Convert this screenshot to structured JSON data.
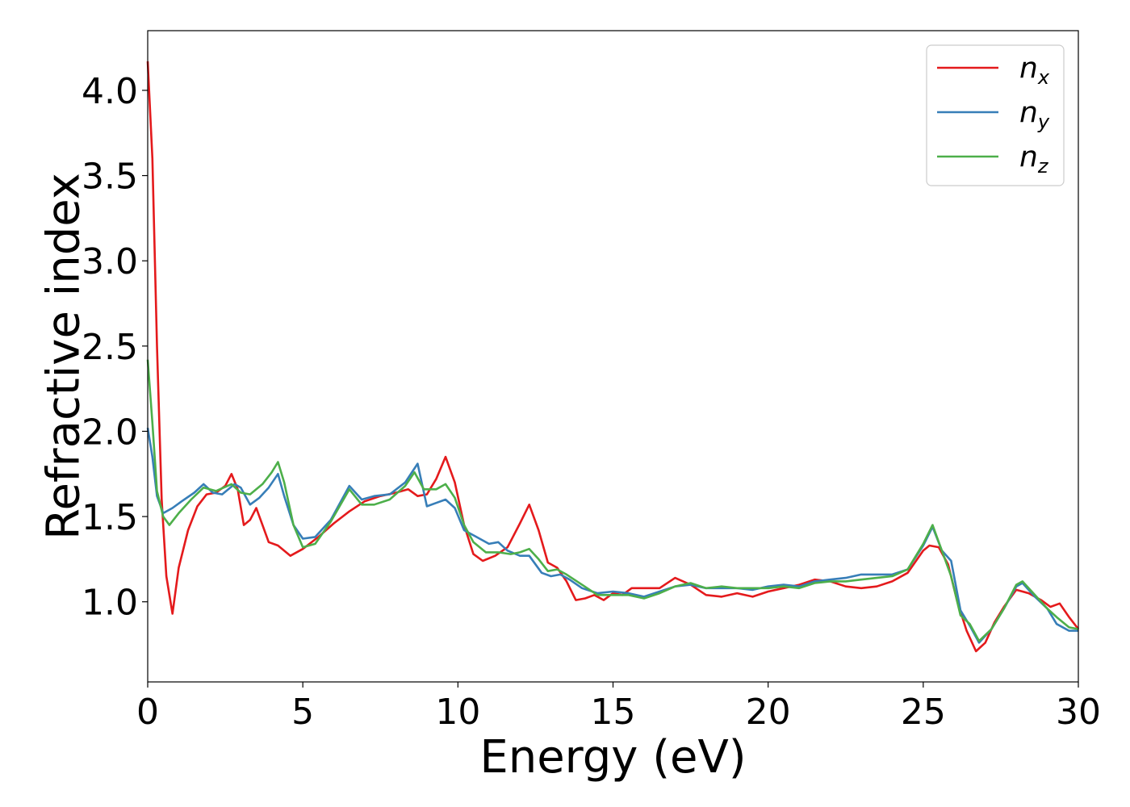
{
  "chart_data": {
    "type": "line",
    "xlabel": "Energy (eV)",
    "ylabel": "Refractive index",
    "xlim": [
      0,
      30
    ],
    "ylim": [
      0.53,
      4.35
    ],
    "xticks": [
      0,
      5,
      10,
      15,
      20,
      25,
      30
    ],
    "yticks": [
      1.0,
      1.5,
      2.0,
      2.5,
      3.0,
      3.5,
      4.0
    ],
    "ytick_labels": [
      "1.0",
      "1.5",
      "2.0",
      "2.5",
      "3.0",
      "3.5",
      "4.0"
    ],
    "grid": false,
    "legend_position": "top-right",
    "series": [
      {
        "name": "n",
        "subscript": "x",
        "color": "#e41a1c",
        "points": [
          [
            0,
            4.17
          ],
          [
            0.15,
            3.6
          ],
          [
            0.3,
            2.5
          ],
          [
            0.45,
            1.6
          ],
          [
            0.6,
            1.15
          ],
          [
            0.8,
            0.93
          ],
          [
            1.0,
            1.2
          ],
          [
            1.3,
            1.42
          ],
          [
            1.6,
            1.56
          ],
          [
            1.9,
            1.63
          ],
          [
            2.2,
            1.64
          ],
          [
            2.5,
            1.68
          ],
          [
            2.7,
            1.75
          ],
          [
            2.9,
            1.66
          ],
          [
            3.1,
            1.45
          ],
          [
            3.3,
            1.48
          ],
          [
            3.5,
            1.55
          ],
          [
            3.7,
            1.45
          ],
          [
            3.9,
            1.35
          ],
          [
            4.2,
            1.33
          ],
          [
            4.6,
            1.27
          ],
          [
            5.0,
            1.31
          ],
          [
            5.5,
            1.38
          ],
          [
            6.0,
            1.46
          ],
          [
            6.5,
            1.53
          ],
          [
            7.0,
            1.59
          ],
          [
            7.5,
            1.62
          ],
          [
            8.0,
            1.64
          ],
          [
            8.4,
            1.66
          ],
          [
            8.7,
            1.62
          ],
          [
            9.0,
            1.63
          ],
          [
            9.3,
            1.72
          ],
          [
            9.6,
            1.85
          ],
          [
            9.9,
            1.7
          ],
          [
            10.2,
            1.45
          ],
          [
            10.5,
            1.28
          ],
          [
            10.8,
            1.24
          ],
          [
            11.2,
            1.27
          ],
          [
            11.6,
            1.32
          ],
          [
            12.0,
            1.46
          ],
          [
            12.3,
            1.57
          ],
          [
            12.6,
            1.42
          ],
          [
            12.9,
            1.23
          ],
          [
            13.2,
            1.2
          ],
          [
            13.5,
            1.12
          ],
          [
            13.8,
            1.01
          ],
          [
            14.1,
            1.02
          ],
          [
            14.4,
            1.04
          ],
          [
            14.7,
            1.01
          ],
          [
            15.0,
            1.05
          ],
          [
            15.3,
            1.04
          ],
          [
            15.6,
            1.08
          ],
          [
            16.0,
            1.08
          ],
          [
            16.5,
            1.08
          ],
          [
            17.0,
            1.14
          ],
          [
            17.5,
            1.1
          ],
          [
            18.0,
            1.04
          ],
          [
            18.5,
            1.03
          ],
          [
            19.0,
            1.05
          ],
          [
            19.5,
            1.03
          ],
          [
            20.0,
            1.06
          ],
          [
            20.5,
            1.08
          ],
          [
            21.0,
            1.1
          ],
          [
            21.5,
            1.13
          ],
          [
            22.0,
            1.12
          ],
          [
            22.5,
            1.09
          ],
          [
            23.0,
            1.08
          ],
          [
            23.5,
            1.09
          ],
          [
            24.0,
            1.12
          ],
          [
            24.5,
            1.17
          ],
          [
            25.0,
            1.3
          ],
          [
            25.2,
            1.33
          ],
          [
            25.5,
            1.32
          ],
          [
            25.8,
            1.22
          ],
          [
            26.1,
            1.0
          ],
          [
            26.4,
            0.83
          ],
          [
            26.7,
            0.71
          ],
          [
            27.0,
            0.76
          ],
          [
            27.3,
            0.88
          ],
          [
            27.6,
            0.97
          ],
          [
            28.0,
            1.07
          ],
          [
            28.4,
            1.05
          ],
          [
            28.8,
            1.01
          ],
          [
            29.1,
            0.97
          ],
          [
            29.4,
            0.99
          ],
          [
            29.7,
            0.91
          ],
          [
            30.0,
            0.84
          ]
        ]
      },
      {
        "name": "n",
        "subscript": "y",
        "color": "#377eb8",
        "points": [
          [
            0,
            2.02
          ],
          [
            0.15,
            1.85
          ],
          [
            0.3,
            1.62
          ],
          [
            0.5,
            1.52
          ],
          [
            0.8,
            1.55
          ],
          [
            1.1,
            1.59
          ],
          [
            1.5,
            1.64
          ],
          [
            1.8,
            1.69
          ],
          [
            2.1,
            1.64
          ],
          [
            2.4,
            1.63
          ],
          [
            2.8,
            1.69
          ],
          [
            3.0,
            1.67
          ],
          [
            3.3,
            1.57
          ],
          [
            3.6,
            1.61
          ],
          [
            3.9,
            1.67
          ],
          [
            4.2,
            1.75
          ],
          [
            4.4,
            1.62
          ],
          [
            4.7,
            1.45
          ],
          [
            5.0,
            1.37
          ],
          [
            5.4,
            1.38
          ],
          [
            5.9,
            1.48
          ],
          [
            6.5,
            1.68
          ],
          [
            6.9,
            1.6
          ],
          [
            7.3,
            1.62
          ],
          [
            7.8,
            1.63
          ],
          [
            8.3,
            1.7
          ],
          [
            8.7,
            1.81
          ],
          [
            9.0,
            1.56
          ],
          [
            9.3,
            1.58
          ],
          [
            9.6,
            1.6
          ],
          [
            9.9,
            1.55
          ],
          [
            10.2,
            1.42
          ],
          [
            10.6,
            1.38
          ],
          [
            11.0,
            1.34
          ],
          [
            11.3,
            1.35
          ],
          [
            11.6,
            1.3
          ],
          [
            12.0,
            1.27
          ],
          [
            12.3,
            1.27
          ],
          [
            12.7,
            1.17
          ],
          [
            13.0,
            1.15
          ],
          [
            13.3,
            1.16
          ],
          [
            13.6,
            1.13
          ],
          [
            14.0,
            1.08
          ],
          [
            14.5,
            1.05
          ],
          [
            15.0,
            1.06
          ],
          [
            15.5,
            1.05
          ],
          [
            16.0,
            1.03
          ],
          [
            16.5,
            1.06
          ],
          [
            17.0,
            1.09
          ],
          [
            17.5,
            1.1
          ],
          [
            18.0,
            1.08
          ],
          [
            18.5,
            1.08
          ],
          [
            19.0,
            1.08
          ],
          [
            19.5,
            1.07
          ],
          [
            20.0,
            1.09
          ],
          [
            20.5,
            1.1
          ],
          [
            21.0,
            1.09
          ],
          [
            21.5,
            1.12
          ],
          [
            22.0,
            1.13
          ],
          [
            22.5,
            1.14
          ],
          [
            23.0,
            1.16
          ],
          [
            23.5,
            1.16
          ],
          [
            24.0,
            1.16
          ],
          [
            24.5,
            1.19
          ],
          [
            25.0,
            1.33
          ],
          [
            25.3,
            1.44
          ],
          [
            25.6,
            1.3
          ],
          [
            25.9,
            1.24
          ],
          [
            26.2,
            0.95
          ],
          [
            26.5,
            0.86
          ],
          [
            26.8,
            0.76
          ],
          [
            27.2,
            0.84
          ],
          [
            27.6,
            0.96
          ],
          [
            28.0,
            1.09
          ],
          [
            28.2,
            1.11
          ],
          [
            28.6,
            1.03
          ],
          [
            29.0,
            0.96
          ],
          [
            29.3,
            0.87
          ],
          [
            29.7,
            0.83
          ],
          [
            30.0,
            0.83
          ]
        ]
      },
      {
        "name": "n",
        "subscript": "z",
        "color": "#4daf4a",
        "points": [
          [
            0,
            2.42
          ],
          [
            0.15,
            2.05
          ],
          [
            0.3,
            1.65
          ],
          [
            0.5,
            1.5
          ],
          [
            0.7,
            1.45
          ],
          [
            1.0,
            1.52
          ],
          [
            1.4,
            1.6
          ],
          [
            1.8,
            1.67
          ],
          [
            2.2,
            1.65
          ],
          [
            2.7,
            1.69
          ],
          [
            3.0,
            1.64
          ],
          [
            3.3,
            1.63
          ],
          [
            3.7,
            1.69
          ],
          [
            4.0,
            1.76
          ],
          [
            4.2,
            1.82
          ],
          [
            4.4,
            1.7
          ],
          [
            4.7,
            1.45
          ],
          [
            5.0,
            1.32
          ],
          [
            5.4,
            1.34
          ],
          [
            5.9,
            1.47
          ],
          [
            6.5,
            1.66
          ],
          [
            6.9,
            1.57
          ],
          [
            7.3,
            1.57
          ],
          [
            7.8,
            1.6
          ],
          [
            8.3,
            1.68
          ],
          [
            8.6,
            1.76
          ],
          [
            8.9,
            1.66
          ],
          [
            9.3,
            1.66
          ],
          [
            9.6,
            1.69
          ],
          [
            9.9,
            1.61
          ],
          [
            10.2,
            1.45
          ],
          [
            10.5,
            1.35
          ],
          [
            10.9,
            1.29
          ],
          [
            11.3,
            1.29
          ],
          [
            11.7,
            1.28
          ],
          [
            12.0,
            1.29
          ],
          [
            12.3,
            1.31
          ],
          [
            12.6,
            1.25
          ],
          [
            12.9,
            1.18
          ],
          [
            13.2,
            1.19
          ],
          [
            13.5,
            1.16
          ],
          [
            14.0,
            1.1
          ],
          [
            14.5,
            1.04
          ],
          [
            15.0,
            1.04
          ],
          [
            15.5,
            1.04
          ],
          [
            16.0,
            1.02
          ],
          [
            16.5,
            1.05
          ],
          [
            17.0,
            1.09
          ],
          [
            17.5,
            1.11
          ],
          [
            18.0,
            1.08
          ],
          [
            18.5,
            1.09
          ],
          [
            19.0,
            1.08
          ],
          [
            19.5,
            1.08
          ],
          [
            20.0,
            1.08
          ],
          [
            20.5,
            1.09
          ],
          [
            21.0,
            1.08
          ],
          [
            21.5,
            1.11
          ],
          [
            22.0,
            1.12
          ],
          [
            22.5,
            1.12
          ],
          [
            23.0,
            1.13
          ],
          [
            23.5,
            1.14
          ],
          [
            24.0,
            1.15
          ],
          [
            24.5,
            1.19
          ],
          [
            25.0,
            1.34
          ],
          [
            25.3,
            1.45
          ],
          [
            25.6,
            1.3
          ],
          [
            25.9,
            1.15
          ],
          [
            26.2,
            0.92
          ],
          [
            26.5,
            0.87
          ],
          [
            26.8,
            0.77
          ],
          [
            27.2,
            0.84
          ],
          [
            27.6,
            0.96
          ],
          [
            28.0,
            1.1
          ],
          [
            28.2,
            1.12
          ],
          [
            28.6,
            1.04
          ],
          [
            29.0,
            0.96
          ],
          [
            29.3,
            0.91
          ],
          [
            29.7,
            0.85
          ],
          [
            30.0,
            0.84
          ]
        ]
      }
    ]
  }
}
